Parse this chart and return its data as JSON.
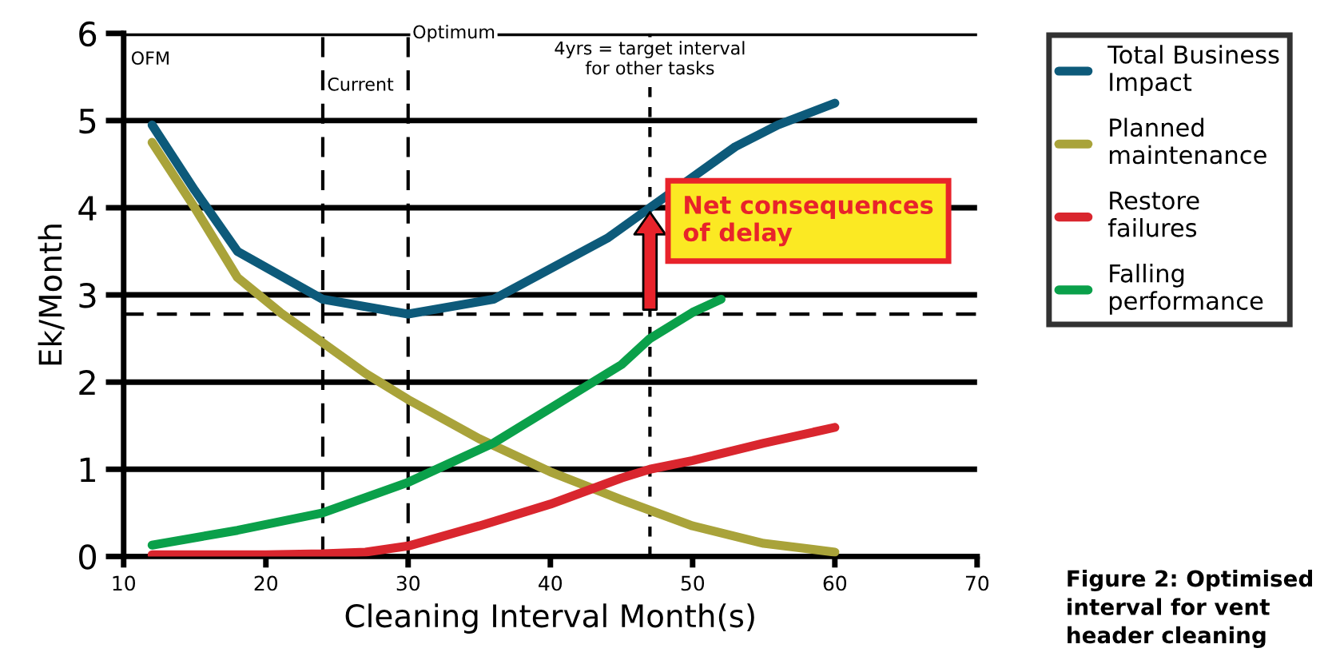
{
  "chart_data": {
    "type": "line",
    "xlabel": "Cleaning Interval Month(s)",
    "ylabel": "Ek/Month",
    "xlim": [
      10,
      70
    ],
    "ylim": [
      0,
      6
    ],
    "xticks": [
      10,
      20,
      30,
      40,
      50,
      60,
      70
    ],
    "yticks": [
      0,
      1,
      2,
      3,
      4,
      5,
      6
    ],
    "grid": "y",
    "legend": "right",
    "line_style": "solid",
    "marker": "none",
    "series": [
      {
        "name": "Total Business Impact",
        "color": "#0d5a7a",
        "x": [
          12,
          15,
          18,
          24,
          30,
          36,
          40,
          44,
          47,
          50,
          53,
          56,
          60
        ],
        "values": [
          4.95,
          4.2,
          3.5,
          2.95,
          2.78,
          2.95,
          3.3,
          3.65,
          4.0,
          4.35,
          4.7,
          4.95,
          5.2
        ]
      },
      {
        "name": "Planned maintenance",
        "color": "#a9a33a",
        "x": [
          12,
          15,
          18,
          21,
          24,
          27,
          30,
          35,
          40,
          45,
          50,
          55,
          60
        ],
        "values": [
          4.75,
          4.0,
          3.2,
          2.8,
          2.45,
          2.1,
          1.8,
          1.35,
          0.97,
          0.65,
          0.35,
          0.15,
          0.05
        ]
      },
      {
        "name": "Restore failures",
        "color": "#d9262e",
        "x": [
          12,
          20,
          24,
          27,
          30,
          35,
          40,
          45,
          47,
          50,
          55,
          60
        ],
        "values": [
          0.02,
          0.02,
          0.03,
          0.05,
          0.12,
          0.35,
          0.6,
          0.9,
          1.0,
          1.1,
          1.3,
          1.48
        ]
      },
      {
        "name": "Falling performance",
        "color": "#0aa04a",
        "x": [
          12,
          18,
          24,
          30,
          36,
          40,
          45,
          47,
          50,
          52
        ],
        "values": [
          0.13,
          0.3,
          0.5,
          0.85,
          1.3,
          1.7,
          2.2,
          2.5,
          2.8,
          2.95
        ]
      }
    ],
    "ref_lines": [
      {
        "axis": "x",
        "value": 24,
        "label": "Current",
        "line_style": "dashed"
      },
      {
        "axis": "x",
        "value": 30,
        "label": "Optimum",
        "line_style": "dashed"
      },
      {
        "axis": "x",
        "value": 47,
        "label": "4yrs = target interval\nfor other tasks",
        "line_style": "dotted"
      },
      {
        "axis": "y",
        "value": 2.78,
        "label": null,
        "line_style": "dashed"
      }
    ],
    "annotations": [
      "OFM",
      {
        "text": "Net consequences\nof delay",
        "x": 47,
        "y": 4.0
      },
      "Figure 2: Optimised\ninterval for vent\nheader cleaning"
    ]
  }
}
